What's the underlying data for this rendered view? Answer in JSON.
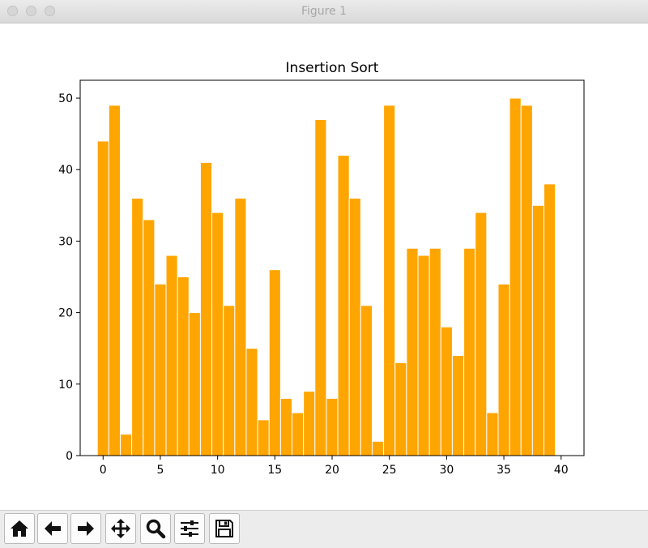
{
  "window": {
    "title": "Figure 1"
  },
  "toolbar": {
    "buttons": [
      {
        "icon": "home-icon"
      },
      {
        "icon": "back-arrow-icon"
      },
      {
        "icon": "forward-arrow-icon"
      },
      {
        "icon": "pan-move-icon"
      },
      {
        "icon": "zoom-magnifier-icon"
      },
      {
        "icon": "configure-subplots-icon"
      },
      {
        "icon": "save-disk-icon"
      }
    ]
  },
  "chart_data": {
    "type": "bar",
    "title": "Insertion Sort",
    "xlabel": "",
    "ylabel": "",
    "color": "#ffa500",
    "x": [
      0,
      1,
      2,
      3,
      4,
      5,
      6,
      7,
      8,
      9,
      10,
      11,
      12,
      13,
      14,
      15,
      16,
      17,
      18,
      19,
      20,
      21,
      22,
      23,
      24,
      25,
      26,
      27,
      28,
      29,
      30,
      31,
      32,
      33,
      34,
      35,
      36,
      37,
      38,
      39
    ],
    "values": [
      44,
      49,
      3,
      36,
      33,
      24,
      28,
      25,
      20,
      41,
      34,
      21,
      36,
      15,
      5,
      26,
      8,
      6,
      9,
      47,
      8,
      42,
      36,
      21,
      2,
      49,
      13,
      29,
      28,
      29,
      18,
      14,
      29,
      34,
      6,
      24,
      50,
      49,
      35,
      38
    ],
    "xlim": [
      -2,
      42
    ],
    "ylim": [
      0,
      52.5
    ],
    "xticks": [
      0,
      5,
      10,
      15,
      20,
      25,
      30,
      35,
      40
    ],
    "yticks": [
      0,
      10,
      20,
      30,
      40,
      50
    ],
    "grid": false
  }
}
